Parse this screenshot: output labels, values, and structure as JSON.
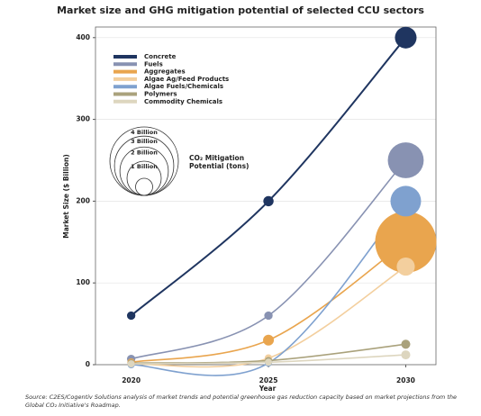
{
  "chart_data": {
    "type": "bubble_line",
    "title": "Market size and GHG mitigation potential of selected CCU sectors",
    "y_label": "Market Size ($ Billion)",
    "x_label": "Year",
    "x": [
      2020,
      2025,
      2030
    ],
    "xlim": [
      2018.7,
      2031.1
    ],
    "xticks": [
      2020,
      2025,
      2030
    ],
    "ylim": [
      0,
      413
    ],
    "yticks": [
      0,
      100,
      200,
      300,
      400
    ],
    "grid": true,
    "legend": "upper left",
    "series": [
      {
        "name": "Concrete",
        "color": "#1f3560",
        "values": [
          60,
          200,
          400
        ],
        "sizes": [
          0.06,
          0.09,
          0.4
        ]
      },
      {
        "name": "Fuels",
        "color": "#8892b2",
        "values": [
          7,
          60,
          250
        ],
        "sizes": [
          0.06,
          0.06,
          1.1
        ]
      },
      {
        "name": "Aggregates",
        "color": "#e9a54e",
        "values": [
          3,
          30,
          150
        ],
        "sizes": [
          0.05,
          0.1,
          3.2
        ]
      },
      {
        "name": "Algae Ag/Feed Products",
        "color": "#f3cf9e",
        "values": [
          1,
          8,
          120
        ],
        "sizes": [
          0.05,
          0.05,
          0.28
        ]
      },
      {
        "name": "Algae Fuels/Chemicals",
        "color": "#7fa1cf",
        "values": [
          0,
          2,
          200
        ],
        "sizes": [
          0.03,
          0.04,
          0.8
        ]
      },
      {
        "name": "Polymers",
        "color": "#aaa27c",
        "values": [
          2,
          5,
          25
        ],
        "sizes": [
          0.03,
          0.04,
          0.07
        ]
      },
      {
        "name": "Commodity Chemicals",
        "color": "#ddd6bf",
        "values": [
          1,
          3,
          12
        ],
        "sizes": [
          0.03,
          0.04,
          0.07
        ]
      }
    ],
    "size_legend": {
      "title": [
        "CO₂ Mitigation",
        "Potential (tons)"
      ],
      "circles": [
        {
          "value": 4,
          "label": "4 Billion"
        },
        {
          "value": 3,
          "label": "3 Billion"
        },
        {
          "value": 2,
          "label": "2 Billion"
        },
        {
          "value": 1,
          "label": "1 Billion"
        },
        {
          "value": 0.25,
          "label": null
        }
      ]
    },
    "source": "Source: C2ES/Cogentiv Solutions analysis of market trends and potential greenhouse gas reduction capacity based on market projections from the Global CO₂ Initiative's Roadmap."
  }
}
